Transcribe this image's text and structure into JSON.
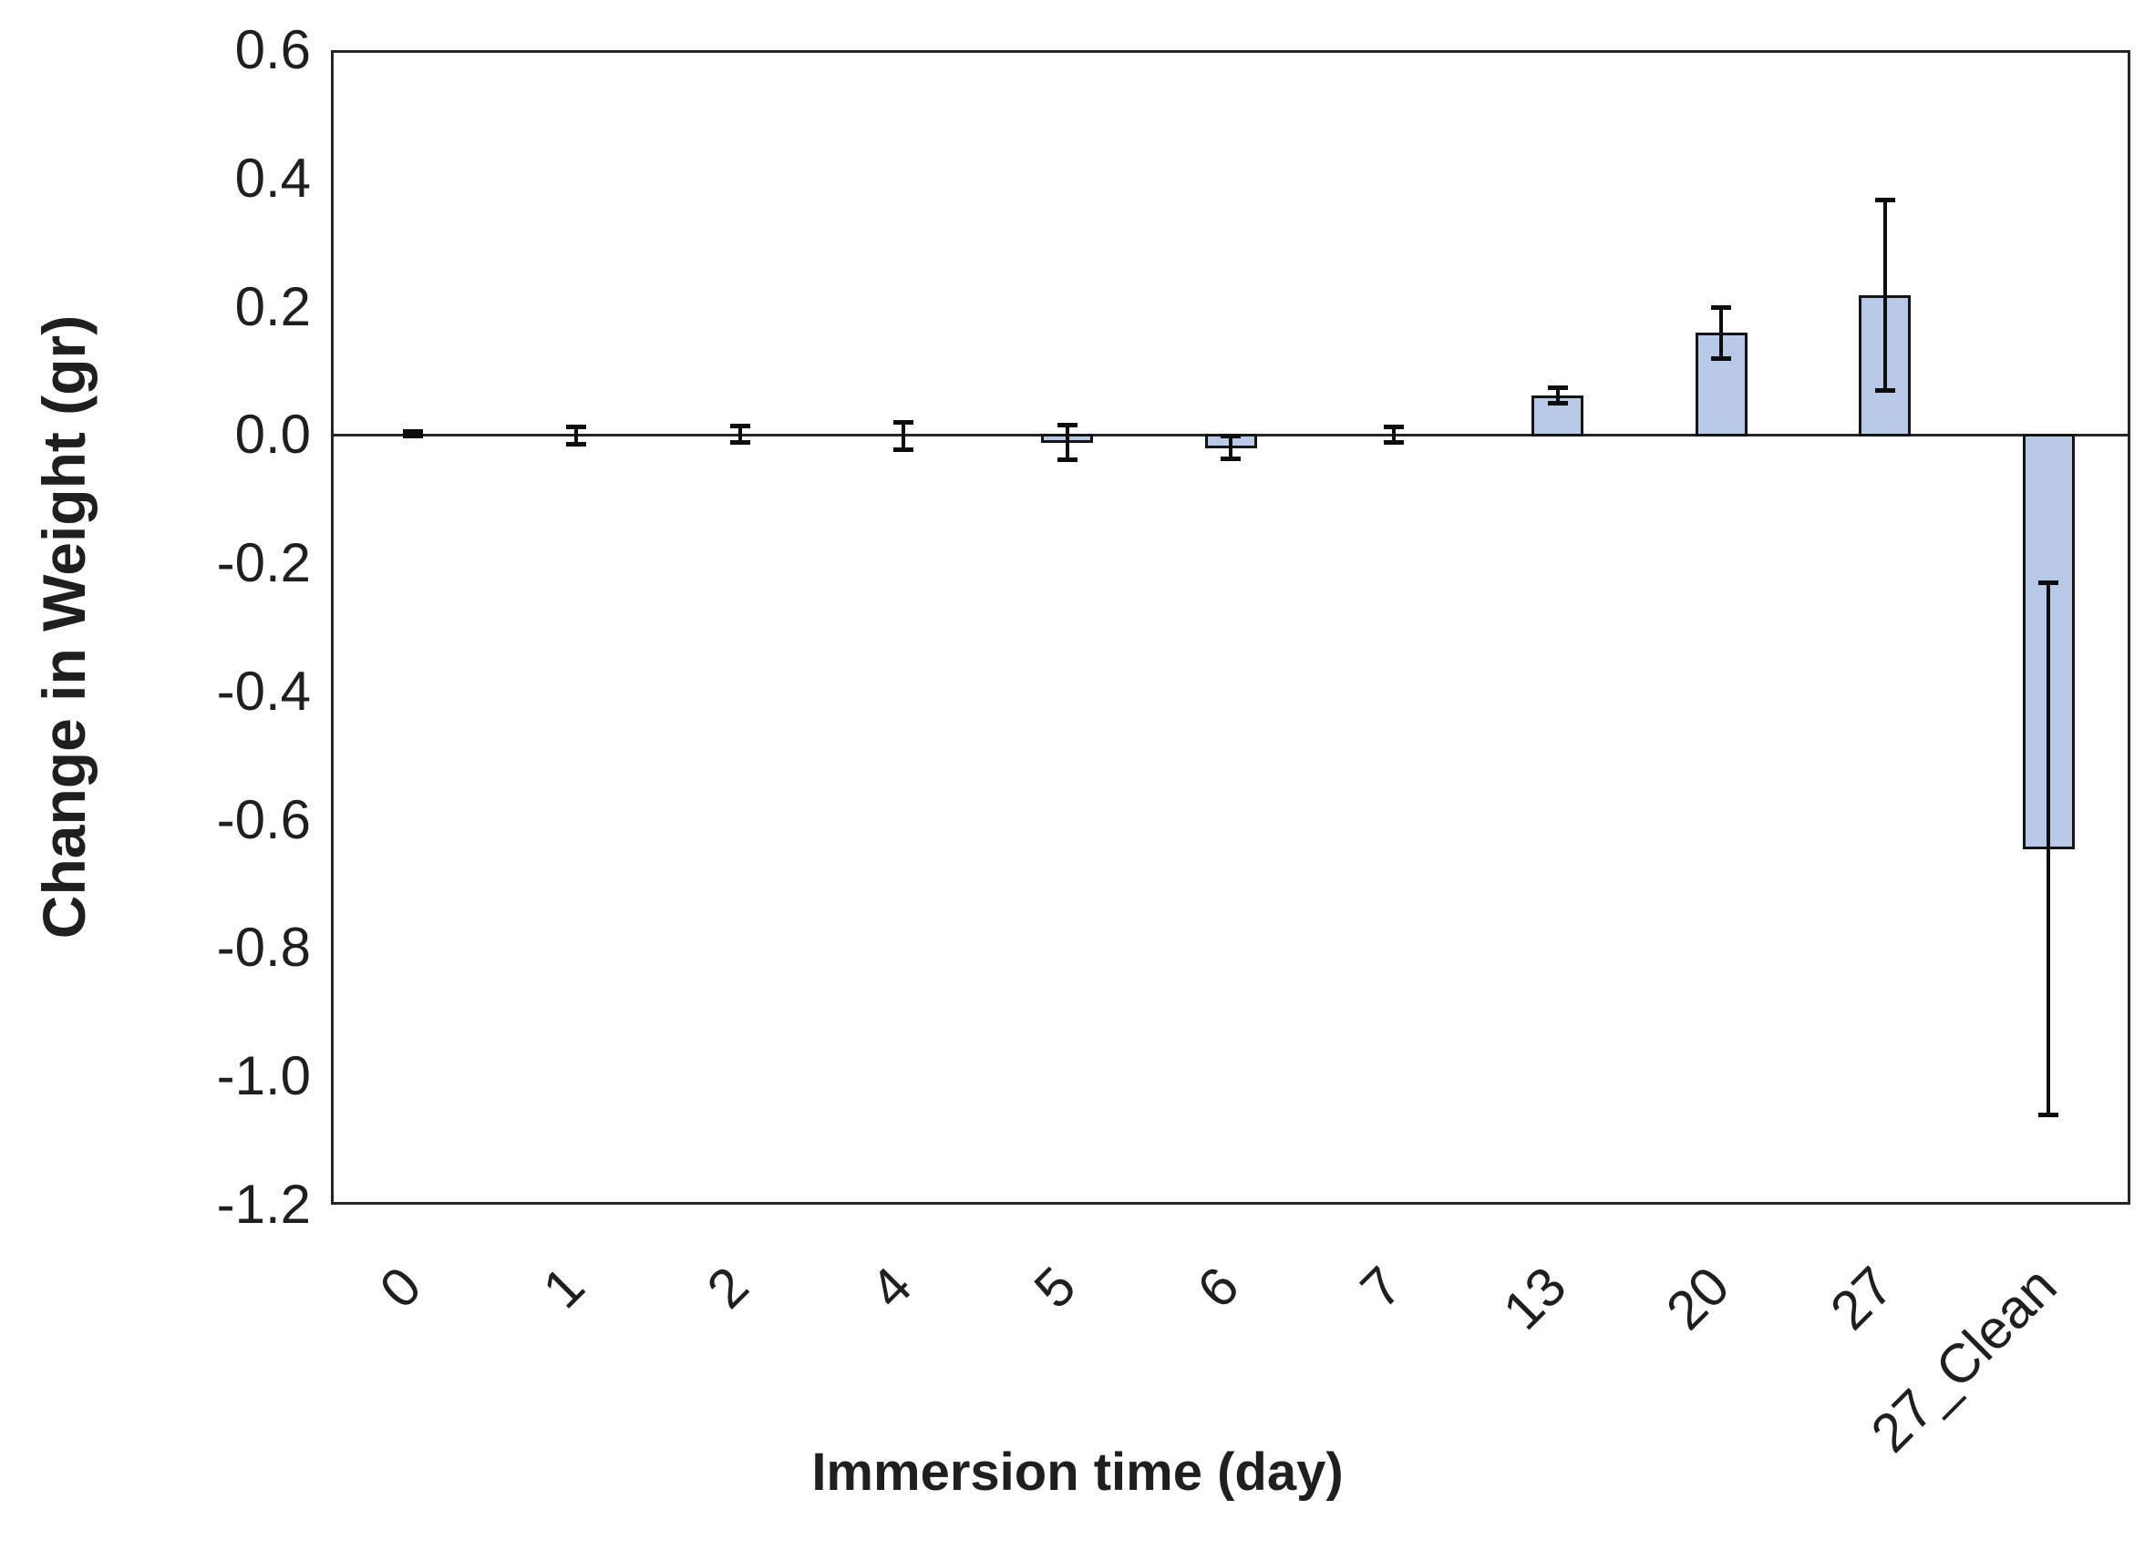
{
  "figure": {
    "background": "#ffffff"
  },
  "chart_data": {
    "type": "bar",
    "title": "",
    "xlabel": "Immersion time (day)",
    "ylabel": "Change in Weight (gr)",
    "categories": [
      "0",
      "1",
      "2",
      "4",
      "5",
      "6",
      "7",
      "13",
      "20",
      "27",
      "27_Clean"
    ],
    "values": [
      0.002,
      -0.001,
      0.001,
      -0.002,
      -0.011,
      -0.019,
      0.001,
      0.062,
      0.159,
      0.218,
      -0.645
    ],
    "error_bars": [
      0.003,
      0.013,
      0.013,
      0.021,
      0.027,
      0.018,
      0.012,
      0.012,
      0.04,
      0.148,
      0.415
    ],
    "ylim": [
      -1.2,
      0.6
    ],
    "ytick_step": 0.2,
    "ytick_labels": [
      "0.6",
      "0.4",
      "0.2",
      "0.0",
      "-0.2",
      "-0.4",
      "-0.6",
      "-0.8",
      "-1.0",
      "-1.2"
    ],
    "xtick_rotation_deg": 45,
    "grid": false,
    "legend": null,
    "bar_color": "#b8c9e7",
    "bar_border_color": "#141414",
    "error_color": "#0d0d0d",
    "axis_color": "#262626",
    "text_color": "#1f1f1f"
  }
}
